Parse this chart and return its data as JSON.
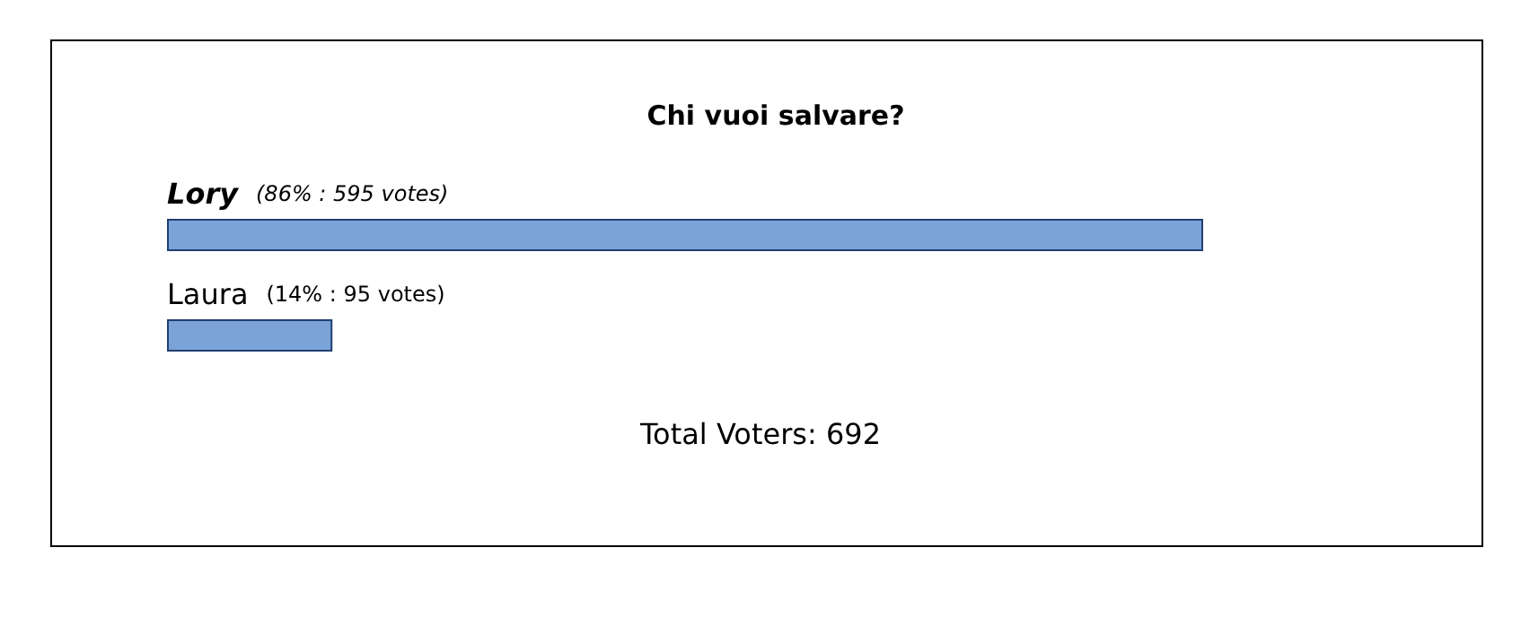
{
  "chart_data": {
    "type": "bar",
    "orientation": "horizontal",
    "title": "Chi vuoi salvare?",
    "categories": [
      "Lory",
      "Laura"
    ],
    "values": [
      595,
      95
    ],
    "value_labels": [
      "(86% : 595 votes)",
      "(14% : 95 votes)"
    ],
    "color": "#7ba3d8",
    "annotations": [
      "Total Voters: 692"
    ]
  }
}
